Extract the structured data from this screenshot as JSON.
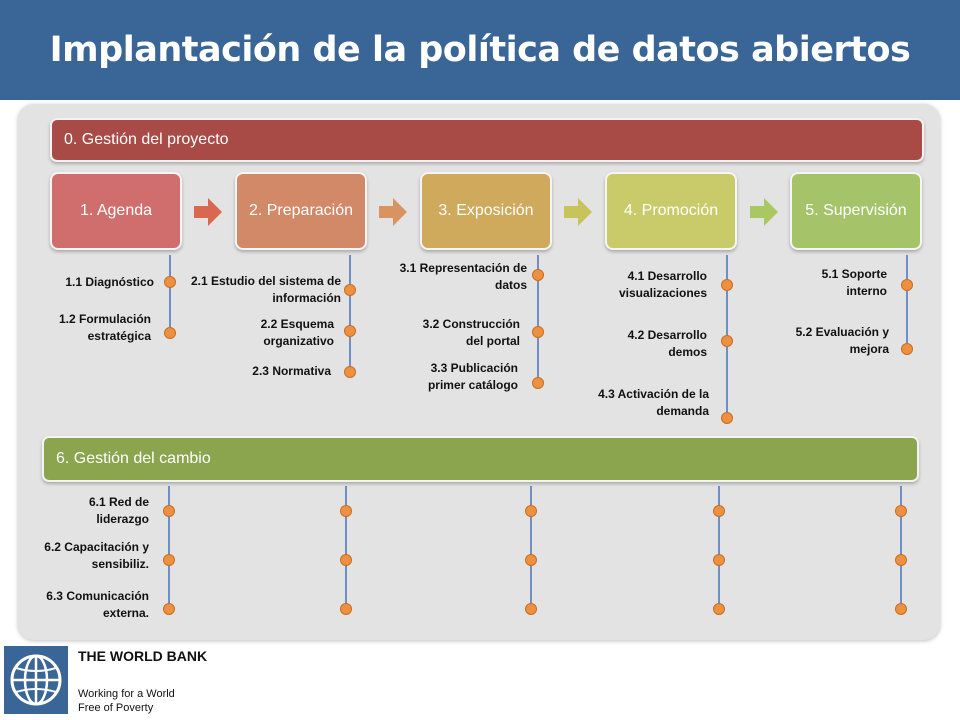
{
  "title": "Implantación de la política de datos abiertos",
  "top_bar": "0. Gestión del proyecto",
  "bottom_bar": "6. Gestión del cambio",
  "phases": [
    {
      "label": "1. Agenda",
      "color": "#d06e6e"
    },
    {
      "label": "2. Preparación",
      "color": "#d28967"
    },
    {
      "label": "3. Exposición",
      "color": "#cfa95c"
    },
    {
      "label": "4. Promoción",
      "color": "#c9cb6a"
    },
    {
      "label": "5. Supervisión",
      "color": "#a5c46a"
    }
  ],
  "tasks": {
    "agenda": [
      "1.1 Diagnóstico",
      "1.2 Formulación estratégica"
    ],
    "preparacion": [
      "2.1 Estudio del sistema de información",
      "2.2 Esquema organizativo",
      "2.3 Normativa"
    ],
    "exposicion": [
      "3.1 Representación de datos",
      "3.2 Construcción del portal",
      "3.3 Publicación primer catálogo"
    ],
    "promocion": [
      "4.1 Desarrollo visualizaciones",
      "4.2 Desarrollo demos",
      "4.3 Activación de la demanda"
    ],
    "supervision": [
      "5.1 Soporte interno",
      "5.2 Evaluación y mejora"
    ]
  },
  "change_tasks": [
    "6.1 Red de liderazgo",
    "6.2 Capacitación y sensibiliz.",
    "6.3 Comunicación externa."
  ],
  "colors": {
    "header": "#3a6597",
    "top_bar": "#a84b46",
    "bottom_bar": "#8aa54e",
    "dot": "#ed9040",
    "line": "#6d8fc3"
  },
  "footer": {
    "name": "THE WORLD BANK",
    "slogan": "Working for a World\nFree of Poverty"
  }
}
